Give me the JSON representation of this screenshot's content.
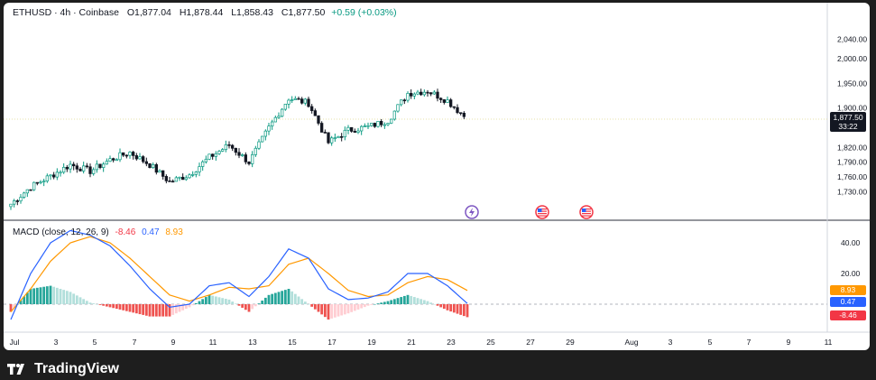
{
  "header": {
    "symbol": "ETHUSD",
    "interval": "4h",
    "exchange": "Coinbase",
    "open_label": "O",
    "open": "1,877.04",
    "high_label": "H",
    "high": "1,878.44",
    "low_label": "L",
    "low": "1,858.43",
    "close_label": "C",
    "close": "1,877.50",
    "change": "+0.59 (+0.03%)"
  },
  "price_tag": {
    "price": "1,877.50",
    "countdown": "33:22"
  },
  "macd_legend": {
    "label": "MACD (close, 12, 26, 9)",
    "histogram": "-8.46",
    "macd": "0.47",
    "signal": "8.93"
  },
  "macd_tags": {
    "signal": "8.93",
    "macd": "0.47",
    "histogram": "-8.46"
  },
  "footer": {
    "brand": "TradingView"
  },
  "colors": {
    "up": "#089981",
    "down": "#131722",
    "macd": "#2962ff",
    "signal": "#ff9800",
    "hist_up": "#26a69a",
    "hist_down": "#ef5350",
    "last_price_line": "#e6e0a8"
  },
  "events": [
    "lightning-icon",
    "us-flag-icon",
    "us-flag-icon"
  ],
  "chart_data": [
    {
      "type": "candlestick",
      "title": "",
      "x_ticks": [
        "Jul",
        "3",
        "5",
        "7",
        "9",
        "11",
        "13",
        "15",
        "17",
        "19",
        "21",
        "23",
        "25",
        "27",
        "29",
        "Aug",
        "3",
        "5",
        "7",
        "9",
        "11"
      ],
      "y_ticks": [
        "2,040.00",
        "2,000.00",
        "1,950.00",
        "1,900.00",
        "1,820.00",
        "1,790.00",
        "1,760.00",
        "1,730.00"
      ],
      "ylim": [
        1720,
        2050
      ],
      "grid": false,
      "close_path": [
        [
          "Jul 1",
          1705
        ],
        [
          "Jul 2",
          1740
        ],
        [
          "Jul 3",
          1762
        ],
        [
          "Jul 4",
          1785
        ],
        [
          "Jul 5",
          1772
        ],
        [
          "Jul 6",
          1795
        ],
        [
          "Jul 7",
          1810
        ],
        [
          "Jul 8",
          1785
        ],
        [
          "Jul 9",
          1750
        ],
        [
          "Jul 10",
          1765
        ],
        [
          "Jul 11",
          1800
        ],
        [
          "Jul 12",
          1825
        ],
        [
          "Jul 13",
          1790
        ],
        [
          "Jul 14",
          1860
        ],
        [
          "Jul 15",
          1920
        ],
        [
          "Jul 16",
          1910
        ],
        [
          "Jul 17",
          1830
        ],
        [
          "Jul 18",
          1855
        ],
        [
          "Jul 19",
          1862
        ],
        [
          "Jul 20",
          1875
        ],
        [
          "Jul 21",
          1930
        ],
        [
          "Jul 22",
          1935
        ],
        [
          "Jul 23",
          1915
        ],
        [
          "Jul 24",
          1877.5
        ]
      ]
    },
    {
      "type": "macd",
      "title": "MACD (close, 12, 26, 9)",
      "y_ticks": [
        "40.00",
        "20.00"
      ],
      "macd_path": [
        [
          "Jul 1",
          -10
        ],
        [
          "Jul 2",
          20
        ],
        [
          "Jul 3",
          40
        ],
        [
          "Jul 4",
          48
        ],
        [
          "Jul 5",
          45
        ],
        [
          "Jul 6",
          38
        ],
        [
          "Jul 7",
          25
        ],
        [
          "Jul 8",
          10
        ],
        [
          "Jul 9",
          -2
        ],
        [
          "Jul 10",
          0
        ],
        [
          "Jul 11",
          12
        ],
        [
          "Jul 12",
          14
        ],
        [
          "Jul 13",
          5
        ],
        [
          "Jul 14",
          18
        ],
        [
          "Jul 15",
          36
        ],
        [
          "Jul 16",
          30
        ],
        [
          "Jul 17",
          10
        ],
        [
          "Jul 18",
          3
        ],
        [
          "Jul 19",
          4
        ],
        [
          "Jul 20",
          8
        ],
        [
          "Jul 21",
          20
        ],
        [
          "Jul 22",
          20
        ],
        [
          "Jul 23",
          12
        ],
        [
          "Jul 24",
          0.47
        ]
      ],
      "signal_path": [
        [
          "Jul 1",
          -5
        ],
        [
          "Jul 2",
          10
        ],
        [
          "Jul 3",
          28
        ],
        [
          "Jul 4",
          40
        ],
        [
          "Jul 5",
          44
        ],
        [
          "Jul 6",
          40
        ],
        [
          "Jul 7",
          30
        ],
        [
          "Jul 8",
          18
        ],
        [
          "Jul 9",
          6
        ],
        [
          "Jul 10",
          2
        ],
        [
          "Jul 11",
          6
        ],
        [
          "Jul 12",
          11
        ],
        [
          "Jul 13",
          10
        ],
        [
          "Jul 14",
          12
        ],
        [
          "Jul 15",
          26
        ],
        [
          "Jul 16",
          30
        ],
        [
          "Jul 17",
          20
        ],
        [
          "Jul 18",
          9
        ],
        [
          "Jul 19",
          5
        ],
        [
          "Jul 20",
          6
        ],
        [
          "Jul 21",
          14
        ],
        [
          "Jul 22",
          18
        ],
        [
          "Jul 23",
          16
        ],
        [
          "Jul 24",
          8.93
        ]
      ],
      "histogram_last": -8.46
    }
  ]
}
